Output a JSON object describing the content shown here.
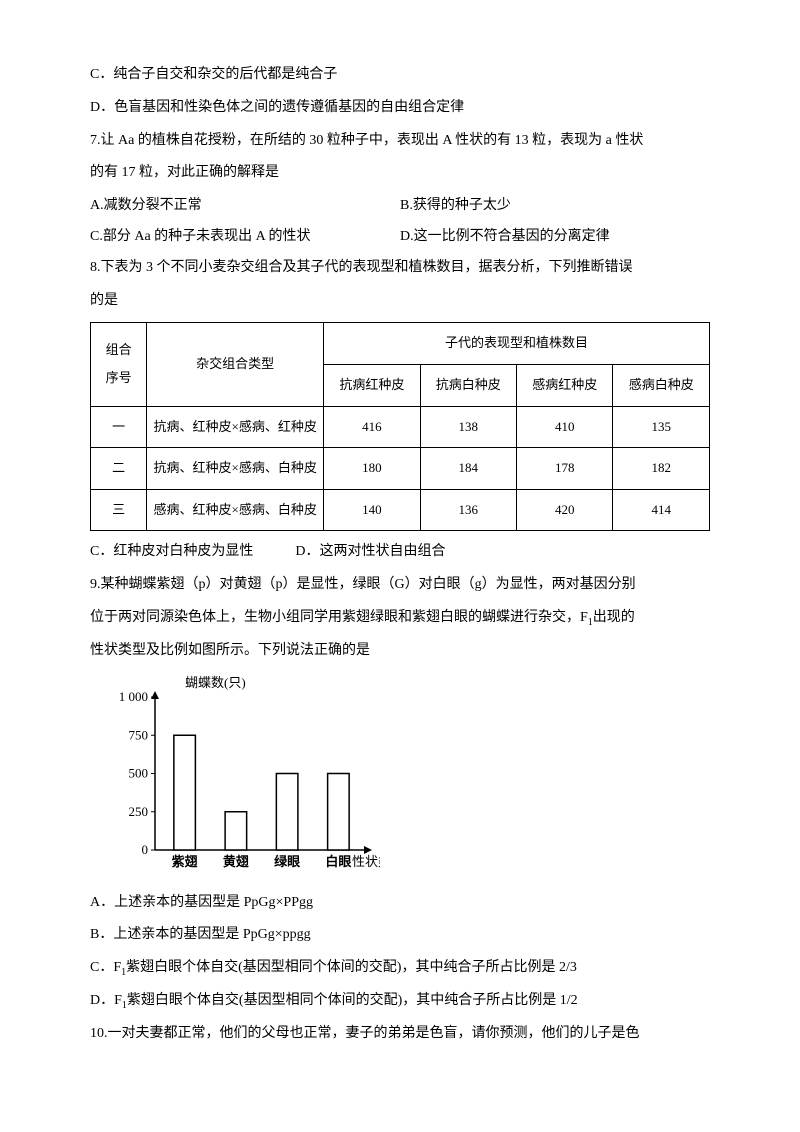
{
  "lines": {
    "l1": "C．纯合子自交和杂交的后代都是纯合子",
    "l2": "D．色盲基因和性染色体之间的遗传遵循基因的自由组合定律",
    "l3": "7.让 Aa 的植株自花授粉，在所结的 30 粒种子中，表现出 A 性状的有 13 粒，表现为 a 性状",
    "l4": "的有 17 粒，对此正确的解释是",
    "l5a": "A.减数分裂不正常",
    "l5b": "B.获得的种子太少",
    "l6a": "C.部分 Aa 的种子未表现出 A 的性状",
    "l6b": "D.这一比例不符合基因的分离定律",
    "l7": "8.下表为 3 个不同小麦杂交组合及其子代的表现型和植株数目，据表分析，下列推断错误",
    "l8": "的是",
    "l9": "C．红种皮对白种皮为显性　　　D．这两对性状自由组合",
    "l10": "9.某种蝴蝶紫翅（p）对黄翅（p）是显性，绿眼（G）对白眼（g）为显性，两对基因分别",
    "l11": "位于两对同源染色体上，生物小组同学用紫翅绿眼和紫翅白眼的蝴蝶进行杂交，F",
    "l11s": "1",
    "l11b": "出现的",
    "l12": "性状类型及比例如图所示。下列说法正确的是",
    "l13": "A．上述亲本的基因型是 PpGg×PPgg",
    "l14": "B．上述亲本的基因型是 PpGg×ppgg",
    "l15a": "C．F",
    "l15s": "1",
    "l15b": "紫翅白眼个体自交(基因型相同个体间的交配)，其中纯合子所占比例是 2/3",
    "l16a": "D．F",
    "l16s": "1",
    "l16b": "紫翅白眼个体自交(基因型相同个体间的交配)，其中纯合子所占比例是 1/2",
    "l17": "10.一对夫妻都正常，他们的父母也正常，妻子的弟弟是色盲，请你预测，他们的儿子是色"
  },
  "table": {
    "header": {
      "seq": "组合",
      "seq2": "序号",
      "type": "杂交组合类型",
      "offspring": "子代的表现型和植株数目",
      "c1": "抗病红种皮",
      "c2": "抗病白种皮",
      "c3": "感病红种皮",
      "c4": "感病白种皮"
    },
    "rows": [
      {
        "seq": "一",
        "type": "抗病、红种皮×感病、红种皮",
        "v": [
          "416",
          "138",
          "410",
          "135"
        ]
      },
      {
        "seq": "二",
        "type": "抗病、红种皮×感病、白种皮",
        "v": [
          "180",
          "184",
          "178",
          "182"
        ]
      },
      {
        "seq": "三",
        "type": "感病、红种皮×感病、白种皮",
        "v": [
          "140",
          "136",
          "420",
          "414"
        ]
      }
    ]
  },
  "chart": {
    "type": "bar",
    "ylabel": "蝴蝶数(只)",
    "xlabel": "性状类型",
    "categories": [
      "紫翅",
      "黄翅",
      "绿眼",
      "白眼"
    ],
    "values": [
      750,
      250,
      500,
      500
    ],
    "yticks": [
      "0",
      "250",
      "500",
      "750",
      "1 000"
    ],
    "ytick_values": [
      0,
      250,
      500,
      750,
      1000
    ],
    "ylim": [
      0,
      1000
    ],
    "bar_fill": "#ffffff",
    "bar_stroke": "#000000",
    "axis_color": "#000000",
    "background_color": "#ffffff",
    "bar_width_ratio": 0.42,
    "label_fontsize": 13,
    "tick_fontsize": 13
  }
}
